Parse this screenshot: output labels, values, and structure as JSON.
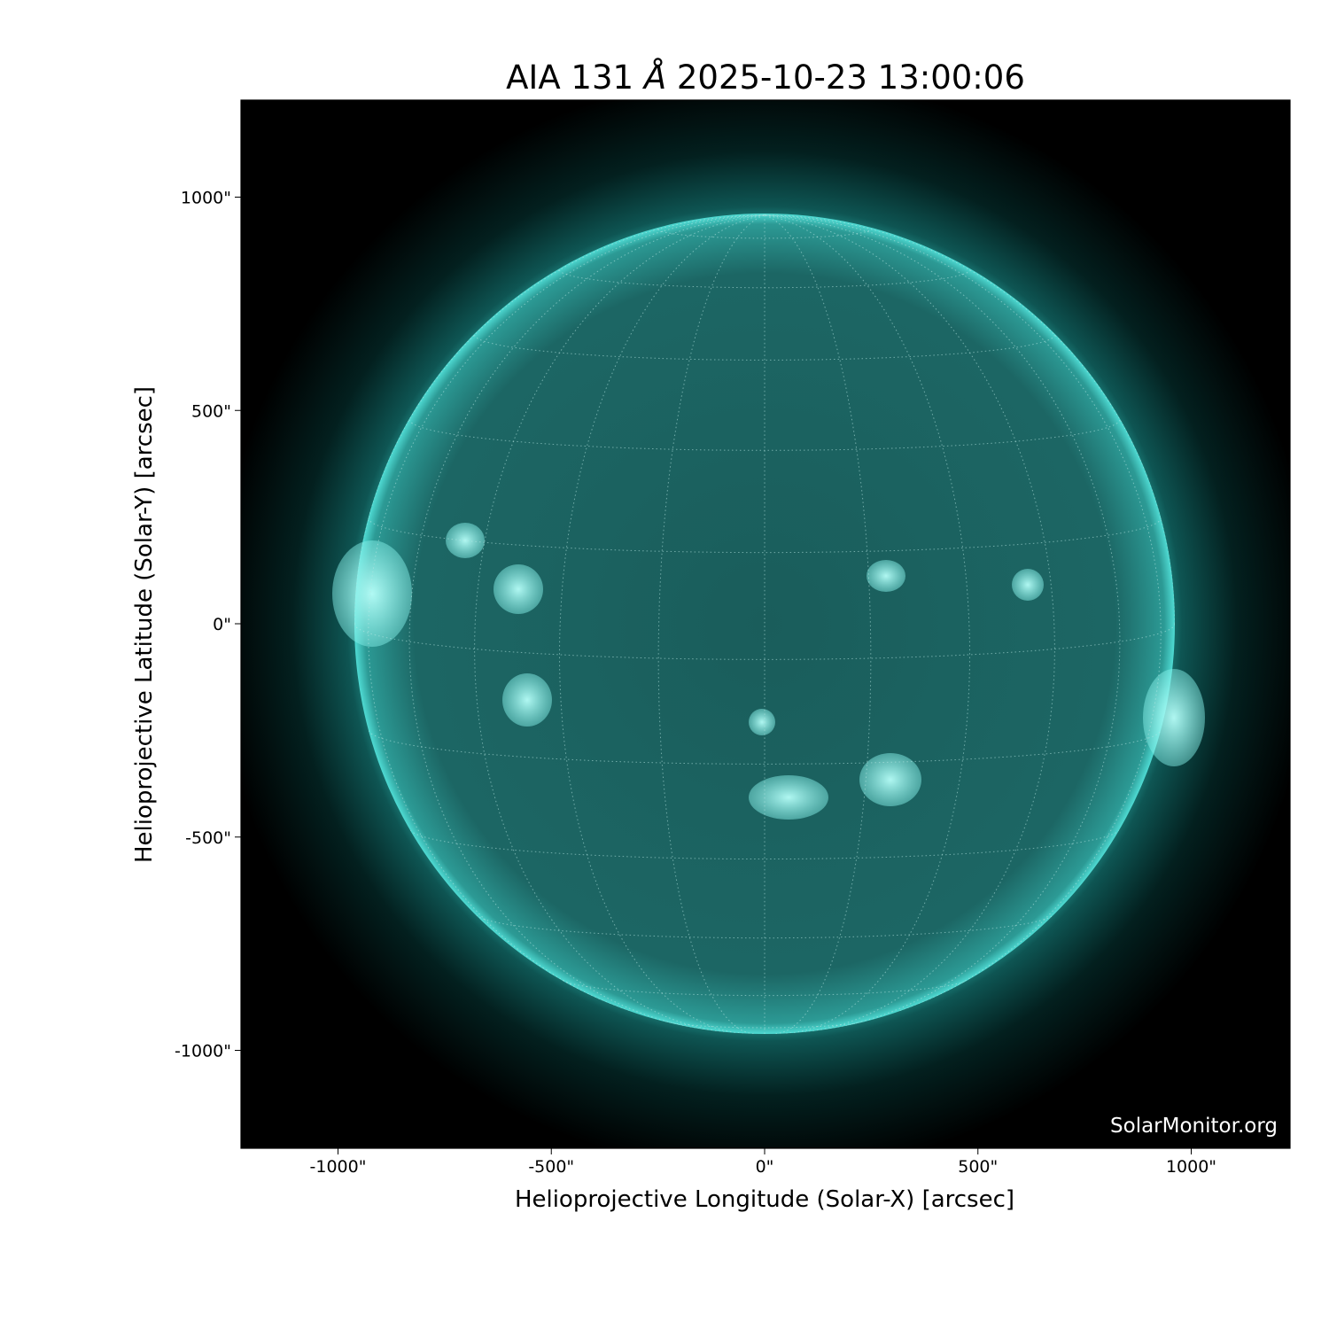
{
  "title": {
    "prefix": "AIA 131",
    "unit": "Å",
    "timestamp": "2025-10-23 13:00:06"
  },
  "credit": "SolarMonitor.org",
  "chart_data": {
    "type": "heatmap",
    "description_kind": "solar EUV image",
    "xlabel": "Helioprojective Longitude (Solar-X) [arcsec]",
    "ylabel": "Helioprojective Latitude (Solar-Y) [arcsec]",
    "xlim": [
      -1230,
      1230
    ],
    "ylim": [
      -1230,
      1230
    ],
    "x_ticks": [
      -1000,
      -500,
      0,
      500,
      1000
    ],
    "x_tick_labels": [
      "-1000\"",
      "-500\"",
      "0\"",
      "500\"",
      "1000\""
    ],
    "y_ticks": [
      1000,
      500,
      0,
      -500,
      -1000
    ],
    "y_tick_labels": [
      "1000\"",
      "500\"",
      "0\"",
      "-500\"",
      "-1000\""
    ],
    "solar_radius_arcsec": 962,
    "grid": "heliographic, 15 degree spacing, dotted",
    "colors": {
      "background": "#000000",
      "disk": "#1f6f6c",
      "limb": "#3fe0d8",
      "bright": "#aefff8"
    }
  }
}
